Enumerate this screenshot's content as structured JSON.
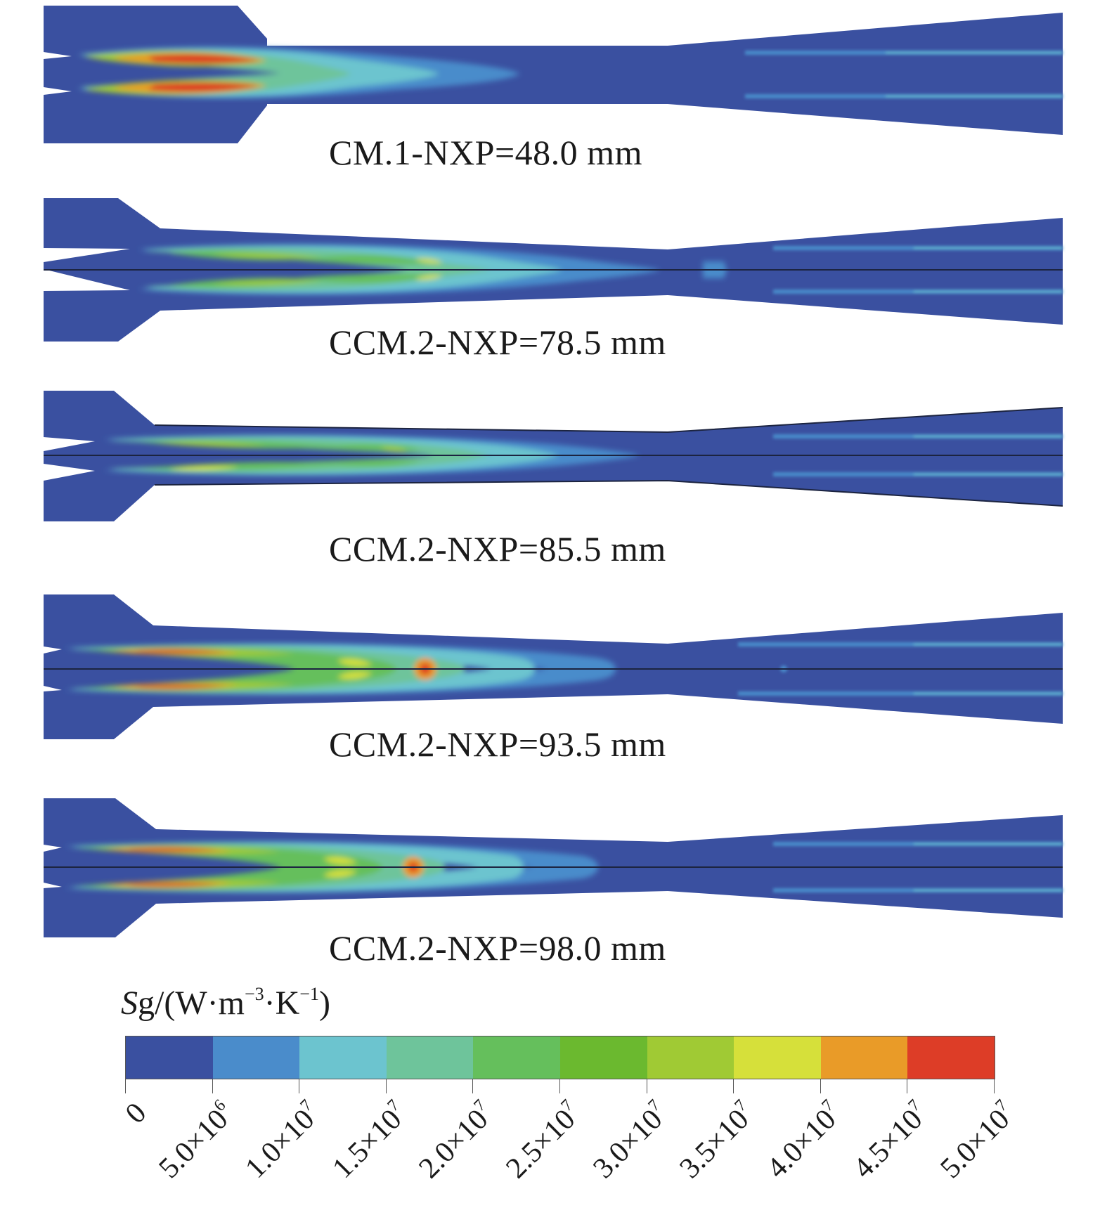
{
  "panels": [
    {
      "caption": "CM.1-NXP=48.0 mm"
    },
    {
      "caption": "CCM.2-NXP=78.5 mm"
    },
    {
      "caption": "CCM.2-NXP=85.5 mm"
    },
    {
      "caption": "CCM.2-NXP=93.5 mm"
    },
    {
      "caption": "CCM.2-NXP=98.0 mm"
    }
  ],
  "legend": {
    "symbol": "S",
    "symbol_rest": "g/(W·m",
    "exp1": "−3",
    "mid": "·K",
    "exp2": "−1",
    "close": ")",
    "colors": [
      "#3a50a0",
      "#4a8ccb",
      "#6cc4cf",
      "#6ec49b",
      "#65bf5c",
      "#6bb92f",
      "#a0ca34",
      "#d6e03a",
      "#e99b28",
      "#dd3d27"
    ],
    "tick_mantissas": [
      "0",
      "5.0×10",
      "1.0×10",
      "1.5×10",
      "2.0×10",
      "2.5×10",
      "3.0×10",
      "3.5×10",
      "4.0×10",
      "4.5×10",
      "5.0×10"
    ],
    "tick_exponents": [
      "",
      "6",
      "7",
      "7",
      "7",
      "7",
      "7",
      "7",
      "7",
      "7",
      "7"
    ]
  },
  "colors": {
    "background_field": "#3a50a0",
    "centerline": "#1c2440"
  }
}
